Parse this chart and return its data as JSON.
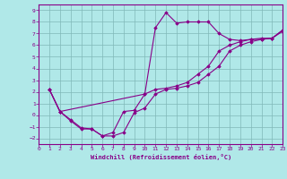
{
  "bg_color": "#b0e8e8",
  "grid_color": "#80b8b8",
  "line_color": "#880088",
  "xlabel": "Windchill (Refroidissement éolien,°C)",
  "xlim": [
    0,
    23
  ],
  "ylim": [
    -2.5,
    9.5
  ],
  "xticks": [
    0,
    1,
    2,
    3,
    4,
    5,
    6,
    7,
    8,
    9,
    10,
    11,
    12,
    13,
    14,
    15,
    16,
    17,
    18,
    19,
    20,
    21,
    22,
    23
  ],
  "yticks": [
    -2,
    -1,
    0,
    1,
    2,
    3,
    4,
    5,
    6,
    7,
    8,
    9
  ],
  "series": [
    {
      "x": [
        1,
        2,
        3,
        4,
        5,
        6,
        7,
        8,
        9,
        10,
        11,
        12,
        13,
        14,
        15,
        16,
        17,
        18,
        19,
        20,
        21,
        22,
        23
      ],
      "y": [
        2.2,
        0.3,
        -0.5,
        -1.2,
        -1.2,
        -1.8,
        -1.8,
        -1.5,
        0.2,
        0.6,
        1.8,
        2.2,
        2.3,
        2.5,
        2.8,
        3.5,
        4.2,
        5.5,
        6.0,
        6.3,
        6.5,
        6.6,
        7.2
      ]
    },
    {
      "x": [
        1,
        2,
        3,
        4,
        5,
        6,
        7,
        8,
        9,
        10,
        11,
        12,
        13,
        14,
        15,
        16,
        17,
        18,
        19,
        20,
        21,
        22,
        23
      ],
      "y": [
        2.2,
        0.3,
        -0.4,
        -1.1,
        -1.2,
        -1.8,
        -1.5,
        0.3,
        0.4,
        1.8,
        7.5,
        8.8,
        7.9,
        8.0,
        8.0,
        8.0,
        7.0,
        6.5,
        6.4,
        6.5,
        6.5,
        6.6,
        7.3
      ]
    },
    {
      "x": [
        1,
        2,
        10,
        11,
        12,
        13,
        14,
        15,
        16,
        17,
        18,
        19,
        20,
        21,
        22,
        23
      ],
      "y": [
        2.2,
        0.3,
        1.8,
        2.2,
        2.3,
        2.5,
        2.8,
        3.5,
        4.2,
        5.5,
        6.0,
        6.3,
        6.5,
        6.6,
        6.6,
        7.3
      ]
    }
  ]
}
